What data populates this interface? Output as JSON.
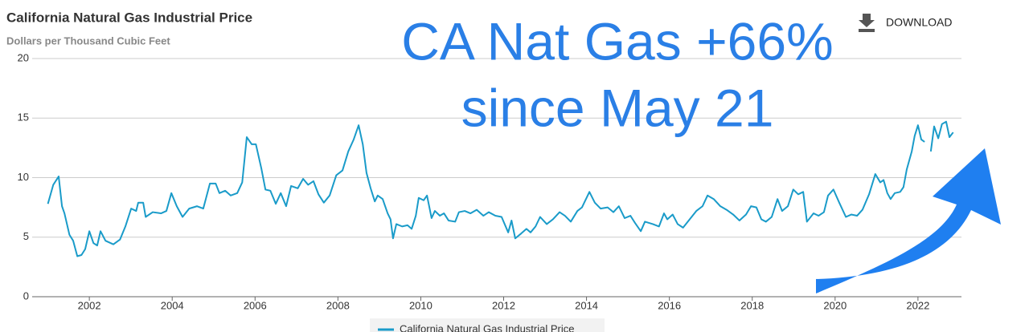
{
  "chart_data": {
    "type": "line",
    "title": "California Natural Gas Industrial Price",
    "subtitle": "Dollars per Thousand Cubic Feet",
    "annotation": [
      "CA Nat Gas +66%",
      "since May 21"
    ],
    "x": [
      2001.0,
      2001.13,
      2001.26,
      2001.34,
      2001.4,
      2001.52,
      2001.61,
      2001.71,
      2001.81,
      2001.9,
      2002.0,
      2002.1,
      2002.19,
      2002.27,
      2002.39,
      2002.58,
      2002.74,
      2002.87,
      2003.01,
      2003.13,
      2003.18,
      2003.3,
      2003.36,
      2003.53,
      2003.73,
      2003.86,
      2003.98,
      2004.11,
      2004.25,
      2004.41,
      2004.6,
      2004.75,
      2004.91,
      2005.05,
      2005.14,
      2005.28,
      2005.41,
      2005.57,
      2005.69,
      2005.8,
      2005.92,
      2006.02,
      2006.15,
      2006.25,
      2006.37,
      2006.5,
      2006.62,
      2006.75,
      2006.87,
      2007.03,
      2007.16,
      2007.28,
      2007.41,
      2007.53,
      2007.66,
      2007.8,
      2007.96,
      2008.11,
      2008.25,
      2008.38,
      2008.5,
      2008.6,
      2008.69,
      2008.79,
      2008.89,
      2008.96,
      2009.08,
      2009.2,
      2009.27,
      2009.33,
      2009.41,
      2009.55,
      2009.68,
      2009.78,
      2009.88,
      2009.95,
      2010.07,
      2010.15,
      2010.26,
      2010.34,
      2010.46,
      2010.56,
      2010.67,
      2010.83,
      2010.92,
      2011.06,
      2011.2,
      2011.35,
      2011.51,
      2011.64,
      2011.8,
      2011.95,
      2012.11,
      2012.19,
      2012.28,
      2012.42,
      2012.55,
      2012.65,
      2012.77,
      2012.88,
      2013.04,
      2013.19,
      2013.35,
      2013.48,
      2013.62,
      2013.78,
      2013.89,
      2014.07,
      2014.2,
      2014.34,
      2014.51,
      2014.65,
      2014.78,
      2014.92,
      2015.06,
      2015.17,
      2015.31,
      2015.41,
      2015.6,
      2015.75,
      2015.87,
      2015.95,
      2016.08,
      2016.2,
      2016.33,
      2016.49,
      2016.65,
      2016.8,
      2016.92,
      2017.07,
      2017.23,
      2017.38,
      2017.54,
      2017.69,
      2017.85,
      2017.97,
      2018.1,
      2018.22,
      2018.33,
      2018.47,
      2018.61,
      2018.72,
      2018.86,
      2018.99,
      2019.11,
      2019.23,
      2019.32,
      2019.48,
      2019.6,
      2019.73,
      2019.83,
      2019.96,
      2020.1,
      2020.26,
      2020.39,
      2020.53,
      2020.66,
      2020.82,
      2020.97,
      2021.09,
      2021.17,
      2021.26,
      2021.34,
      2021.44,
      2021.57,
      2021.65,
      2021.73,
      2021.85,
      2021.92,
      2022.0,
      2022.08,
      2022.16,
      2022.24,
      2022.31,
      2022.39,
      2022.49,
      2022.58,
      2022.68,
      2022.76,
      2022.85
    ],
    "series": [
      {
        "name": "California Natural Gas Industrial Price",
        "color": "#1a9bc9",
        "values": [
          7.8,
          9.4,
          10.1,
          7.6,
          7.0,
          5.2,
          4.7,
          3.4,
          3.5,
          4.0,
          5.5,
          4.5,
          4.3,
          5.5,
          4.7,
          4.4,
          4.8,
          5.9,
          7.4,
          7.2,
          7.9,
          7.9,
          6.7,
          7.1,
          7.0,
          7.2,
          8.7,
          7.6,
          6.7,
          7.4,
          7.6,
          7.4,
          9.5,
          9.5,
          8.7,
          8.9,
          8.5,
          8.7,
          9.6,
          13.4,
          12.8,
          12.8,
          10.8,
          9.0,
          8.9,
          7.8,
          8.7,
          7.6,
          9.3,
          9.1,
          9.9,
          9.4,
          9.7,
          8.6,
          7.9,
          8.5,
          10.2,
          10.6,
          12.2,
          13.2,
          14.4,
          12.8,
          10.4,
          9.1,
          8.0,
          8.5,
          8.2,
          7.0,
          6.5,
          4.9,
          6.1,
          5.9,
          6.0,
          5.7,
          6.8,
          8.3,
          8.1,
          8.5,
          6.6,
          7.2,
          6.8,
          7.0,
          6.4,
          6.3,
          7.1,
          7.2,
          7.0,
          7.3,
          6.8,
          7.1,
          6.8,
          6.7,
          5.4,
          6.4,
          4.9,
          5.3,
          5.7,
          5.4,
          5.9,
          6.7,
          6.1,
          6.5,
          7.1,
          6.8,
          6.3,
          7.2,
          7.5,
          8.8,
          7.9,
          7.4,
          7.5,
          7.1,
          7.6,
          6.6,
          6.8,
          6.2,
          5.5,
          6.3,
          6.1,
          5.9,
          7.0,
          6.5,
          6.9,
          6.1,
          5.8,
          6.5,
          7.2,
          7.6,
          8.5,
          8.2,
          7.6,
          7.3,
          6.9,
          6.4,
          6.9,
          7.6,
          7.5,
          6.5,
          6.3,
          6.7,
          8.2,
          7.2,
          7.6,
          9.0,
          8.6,
          8.8,
          6.3,
          7.0,
          6.8,
          7.1,
          8.5,
          9.0,
          7.9,
          6.7,
          6.9,
          6.8,
          7.3,
          8.6,
          10.3,
          9.6,
          9.8,
          8.7,
          8.2,
          8.7,
          8.8,
          9.2,
          10.7,
          12.2,
          13.5,
          14.4,
          13.2,
          13.0,
          null,
          12.2,
          14.3,
          13.3,
          14.5,
          14.7,
          13.4,
          13.8
        ]
      }
    ],
    "xlim": [
      2000.62,
      2023.05
    ],
    "xticks": [
      2002,
      2004,
      2006,
      2008,
      2010,
      2012,
      2014,
      2016,
      2018,
      2020,
      2022
    ],
    "ylim": [
      0,
      20
    ],
    "yticks": [
      0,
      5,
      10,
      15,
      20
    ],
    "grid": true
  },
  "download_label": "DOWNLOAD"
}
